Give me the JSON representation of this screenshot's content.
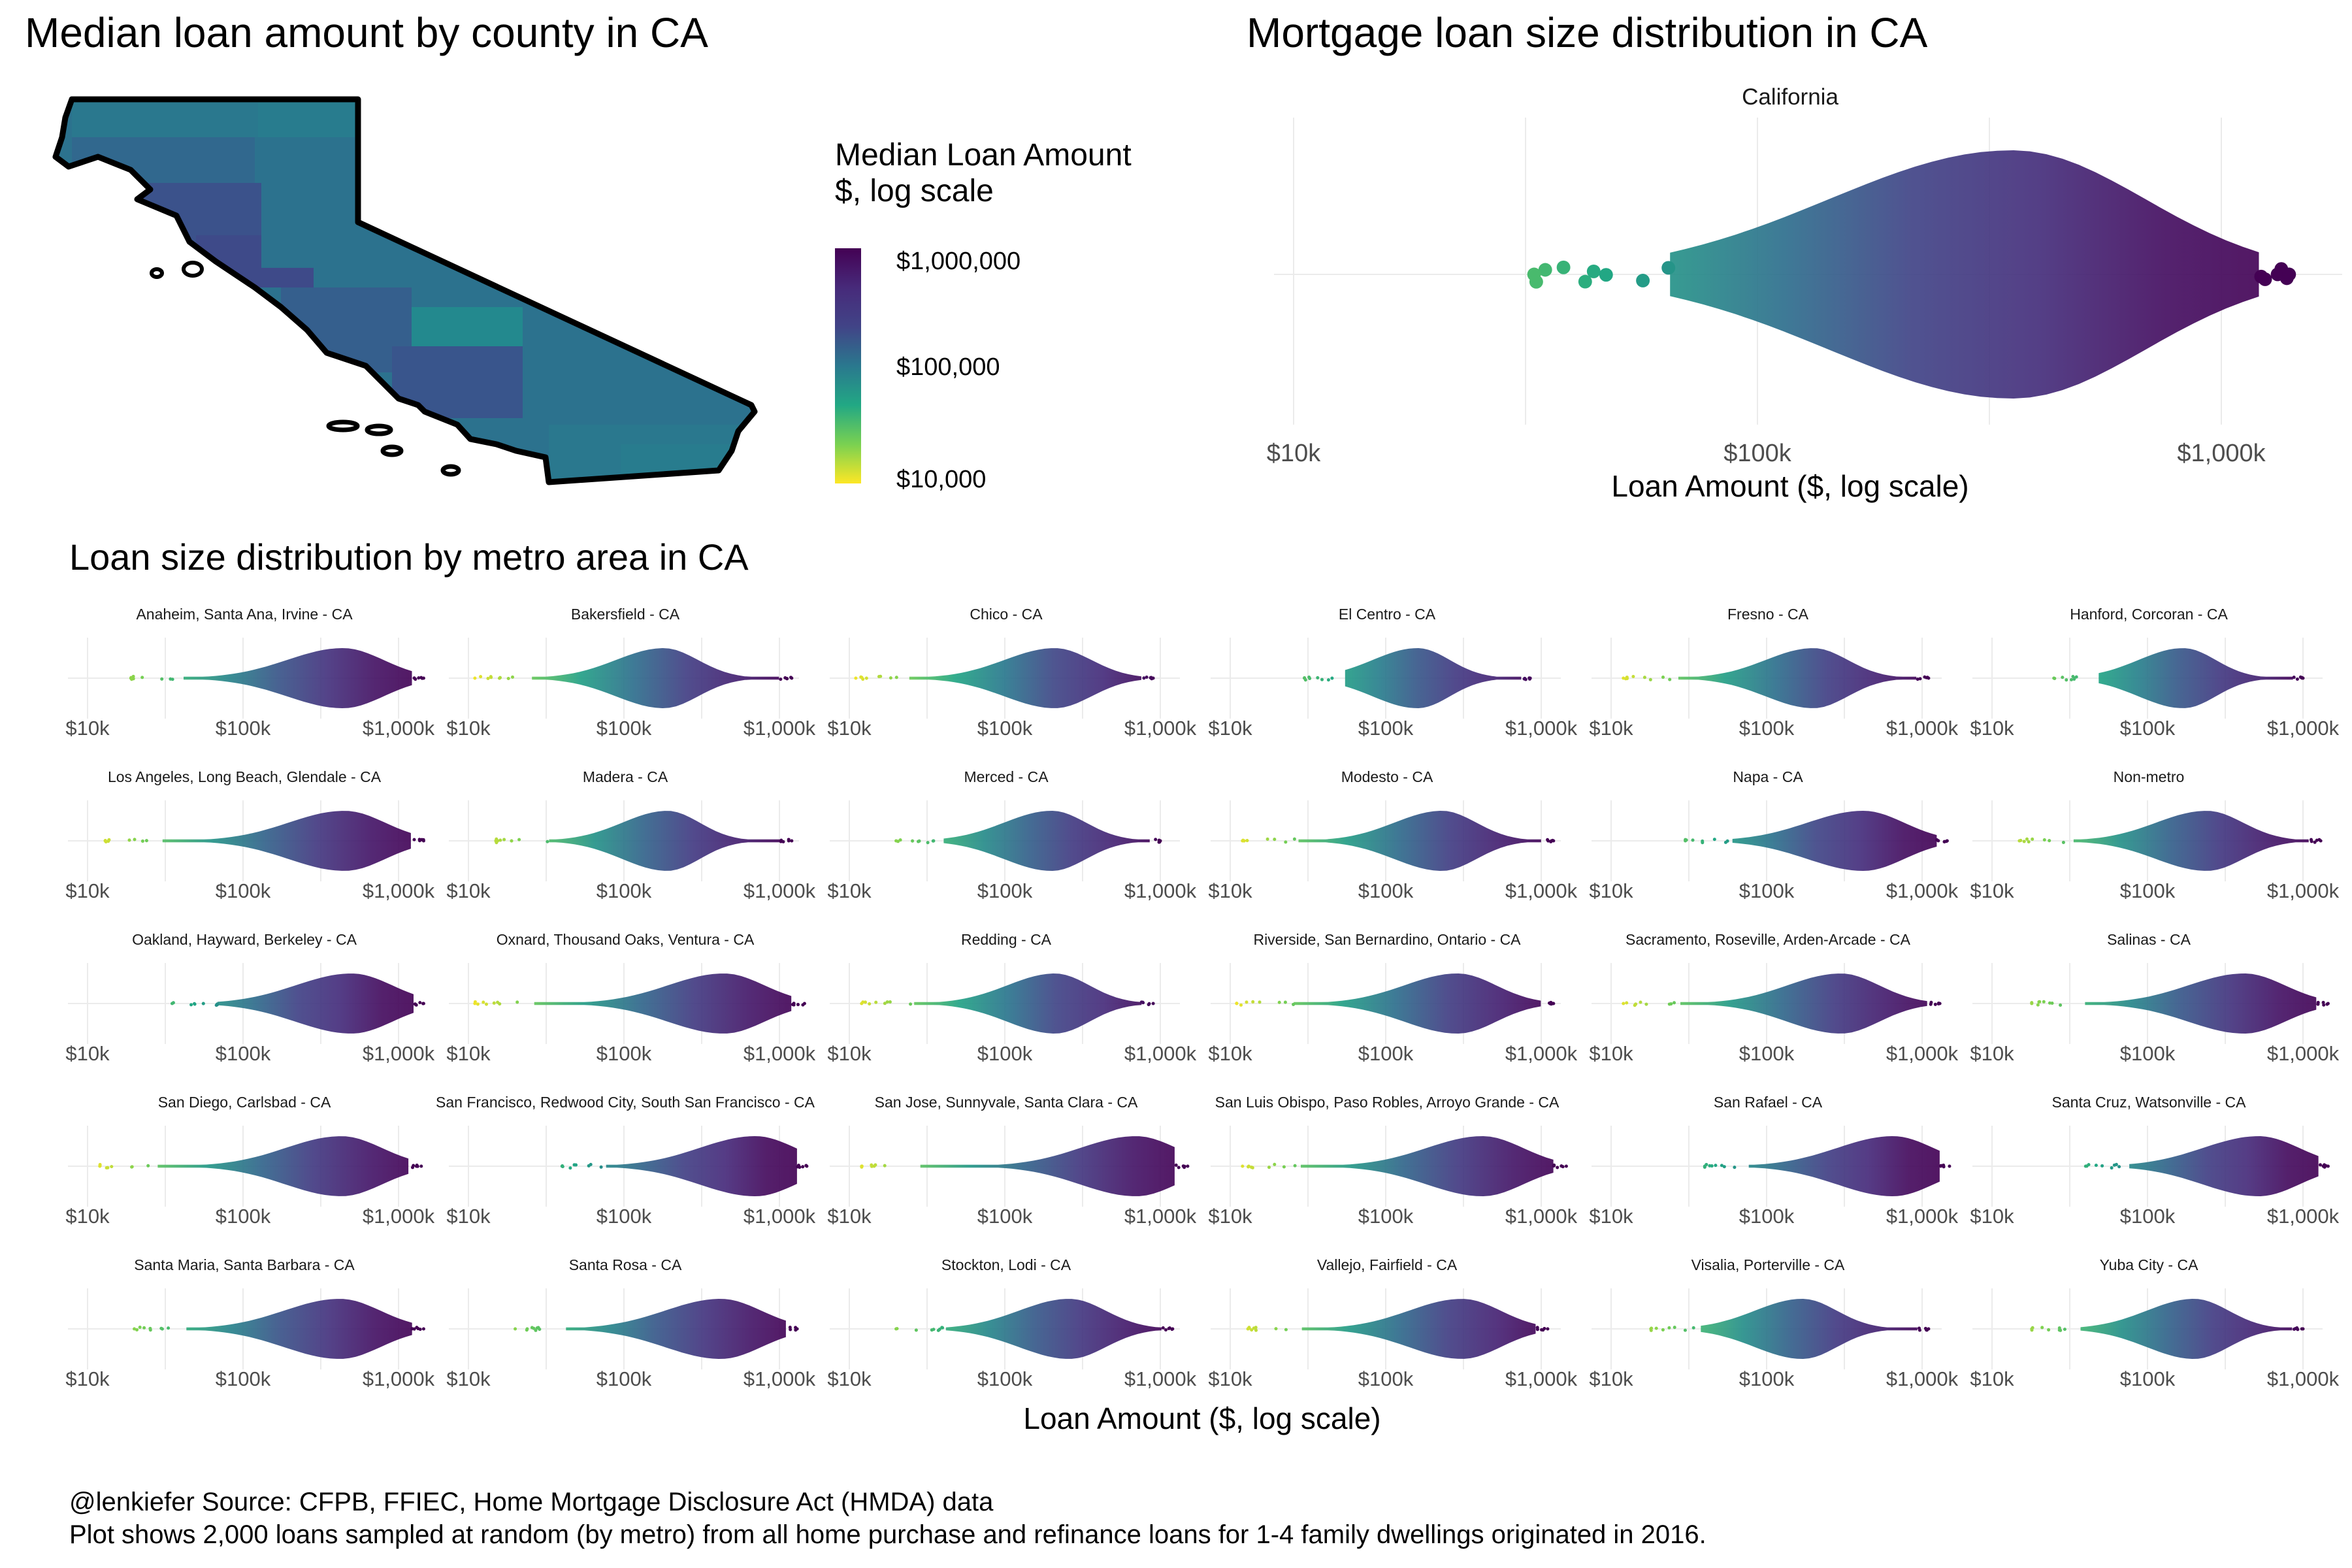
{
  "chart_data": [
    {
      "type": "map",
      "title": "Median loan amount by county in CA",
      "legend": {
        "title_line1": "Median Loan Amount",
        "title_line2": "$, log scale",
        "ticks": [
          "$1,000,000",
          "$100,000",
          "$10,000"
        ],
        "tick_values": [
          1000000,
          100000,
          10000
        ],
        "colors": [
          "#fde725",
          "#90d743",
          "#35b779",
          "#21918c",
          "#31688e",
          "#443983",
          "#440154"
        ]
      },
      "county_fill_colors": [
        "#2a788e",
        "#31688e",
        "#2c728e",
        "#287c8e",
        "#39558c",
        "#3b528b",
        "#355f8d",
        "#23898e",
        "#3e4a89",
        "#33638d"
      ]
    },
    {
      "type": "scatter",
      "subtype": "beeswarm",
      "title": "Mortgage loan size distribution in CA",
      "panel": "California",
      "xlabel": "Loan Amount ($, log scale)",
      "x_scale": "log10",
      "xlim": [
        8000,
        2000000
      ],
      "xticks": [
        10000,
        100000,
        1000000
      ],
      "xtick_labels": [
        "$10k",
        "$100k",
        "$1,000k"
      ],
      "grid": true,
      "min": 33000,
      "max": 1400000,
      "median": 355000,
      "spread": 1.1
    },
    {
      "type": "scatter",
      "subtype": "beeswarm-facets",
      "title": "Loan size distribution by metro area in CA",
      "xlabel": "Loan Amount ($, log scale)",
      "x_scale": "log10",
      "xlim": [
        8000,
        2000000
      ],
      "xticks": [
        10000,
        100000,
        1000000
      ],
      "xtick_labels": [
        "$10k",
        "$100k",
        "$1,000k"
      ],
      "grid": true,
      "facets": [
        {
          "name": "Anaheim, Santa Ana, Irvine - CA",
          "min": 19000,
          "max": 1450000,
          "median": 440000,
          "spread": 1.0
        },
        {
          "name": "Bakersfield - CA",
          "min": 11000,
          "max": 1200000,
          "median": 180000,
          "spread": 0.85
        },
        {
          "name": "Chico - CA",
          "min": 11000,
          "max": 900000,
          "median": 210000,
          "spread": 0.9
        },
        {
          "name": "El Centro - CA",
          "min": 30000,
          "max": 850000,
          "median": 160000,
          "spread": 0.8
        },
        {
          "name": "Fresno - CA",
          "min": 12000,
          "max": 1100000,
          "median": 200000,
          "spread": 0.85
        },
        {
          "name": "Hanford, Corcoran - CA",
          "min": 25000,
          "max": 1000000,
          "median": 170000,
          "spread": 0.8
        },
        {
          "name": "Los Angeles, Long Beach, Glendale - CA",
          "min": 13000,
          "max": 1450000,
          "median": 450000,
          "spread": 1.0
        },
        {
          "name": "Madera - CA",
          "min": 15000,
          "max": 1200000,
          "median": 190000,
          "spread": 0.8
        },
        {
          "name": "Merced - CA",
          "min": 20000,
          "max": 1000000,
          "median": 200000,
          "spread": 0.85
        },
        {
          "name": "Modesto - CA",
          "min": 12000,
          "max": 1200000,
          "median": 230000,
          "spread": 0.85
        },
        {
          "name": "Napa - CA",
          "min": 30000,
          "max": 1450000,
          "median": 420000,
          "spread": 1.0
        },
        {
          "name": "Non-metro",
          "min": 15000,
          "max": 1300000,
          "median": 240000,
          "spread": 0.9
        },
        {
          "name": "Oakland, Hayward, Berkeley - CA",
          "min": 35000,
          "max": 1450000,
          "median": 500000,
          "spread": 1.0
        },
        {
          "name": "Oxnard, Thousand Oaks, Ventura - CA",
          "min": 11000,
          "max": 1450000,
          "median": 440000,
          "spread": 1.0
        },
        {
          "name": "Redding - CA",
          "min": 12000,
          "max": 900000,
          "median": 210000,
          "spread": 0.85
        },
        {
          "name": "Riverside, San Bernardino, Ontario - CA",
          "min": 11000,
          "max": 1200000,
          "median": 290000,
          "spread": 0.95
        },
        {
          "name": "Sacramento, Roseville, Arden-Arcade - CA",
          "min": 12000,
          "max": 1300000,
          "median": 300000,
          "spread": 0.95
        },
        {
          "name": "Salinas - CA",
          "min": 18000,
          "max": 1450000,
          "median": 420000,
          "spread": 1.0
        },
        {
          "name": "San Diego, Carlsbad - CA",
          "min": 12000,
          "max": 1400000,
          "median": 430000,
          "spread": 1.0
        },
        {
          "name": "San Francisco, Redwood City, South San Francisco - CA",
          "min": 40000,
          "max": 1500000,
          "median": 700000,
          "spread": 1.0
        },
        {
          "name": "San Jose, Sunnyvale, Santa Clara - CA",
          "min": 12000,
          "max": 1500000,
          "median": 700000,
          "spread": 1.0
        },
        {
          "name": "San Luis Obispo, Paso Robles, Arroyo Grande - CA",
          "min": 12000,
          "max": 1450000,
          "median": 420000,
          "spread": 1.0
        },
        {
          "name": "San Rafael - CA",
          "min": 40000,
          "max": 1500000,
          "median": 650000,
          "spread": 1.0
        },
        {
          "name": "Santa Cruz, Watsonville - CA",
          "min": 40000,
          "max": 1450000,
          "median": 520000,
          "spread": 1.0
        },
        {
          "name": "Santa Maria, Santa Barbara - CA",
          "min": 20000,
          "max": 1450000,
          "median": 420000,
          "spread": 1.0
        },
        {
          "name": "Santa Rosa - CA",
          "min": 20000,
          "max": 1300000,
          "median": 420000,
          "spread": 1.0
        },
        {
          "name": "Stockton, Lodi - CA",
          "min": 20000,
          "max": 1200000,
          "median": 260000,
          "spread": 0.9
        },
        {
          "name": "Vallejo, Fairfield - CA",
          "min": 13000,
          "max": 1100000,
          "median": 310000,
          "spread": 0.95
        },
        {
          "name": "Visalia, Porterville - CA",
          "min": 18000,
          "max": 1100000,
          "median": 170000,
          "spread": 0.85
        },
        {
          "name": "Yuba City - CA",
          "min": 18000,
          "max": 1000000,
          "median": 200000,
          "spread": 0.85
        }
      ]
    }
  ],
  "caption": {
    "line1": "@lenkiefer Source: CFPB, FFIEC, Home Mortgage Disclosure Act (HMDA) data",
    "line2": "Plot shows 2,000 loans sampled at random (by metro) from all home purchase and refinance loans for 1-4 family dwellings originated in 2016."
  }
}
